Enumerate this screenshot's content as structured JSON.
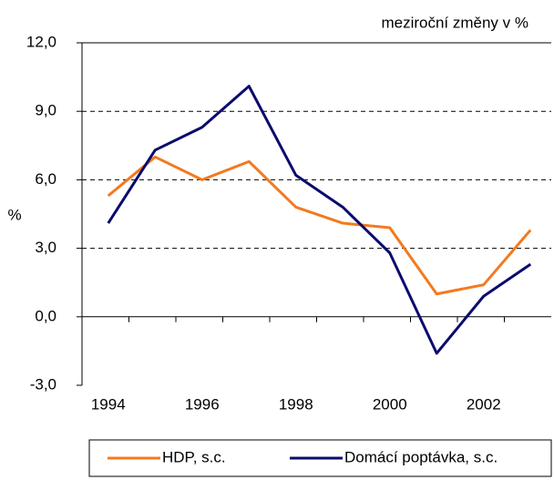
{
  "chart_data": {
    "type": "line",
    "annotation": "meziroční změny v %",
    "y_label": "%",
    "categories": [
      "1994",
      null,
      "1996",
      null,
      "1998",
      null,
      "2000",
      null,
      "2002",
      null
    ],
    "series": [
      {
        "name": "HDP, s.c.",
        "color": "#f47920",
        "values": [
          5.3,
          7.0,
          6.0,
          6.8,
          4.8,
          4.1,
          3.9,
          1.0,
          1.4,
          3.8
        ]
      },
      {
        "name": "Domácí poptávka, s.c.",
        "color": "#0b0b6e",
        "values": [
          4.1,
          7.3,
          8.3,
          10.1,
          6.2,
          4.8,
          2.8,
          -1.6,
          0.9,
          2.3
        ]
      }
    ],
    "ylim": [
      -3,
      12
    ],
    "yticks": [
      {
        "value": -3,
        "label": "-3,0"
      },
      {
        "value": 0,
        "label": "0,0"
      },
      {
        "value": 3,
        "label": "3,0"
      },
      {
        "value": 6,
        "label": "6,0"
      },
      {
        "value": 9,
        "label": "9,0"
      },
      {
        "value": 12,
        "label": "12,0"
      }
    ],
    "grid": true,
    "legend": "bottom"
  }
}
